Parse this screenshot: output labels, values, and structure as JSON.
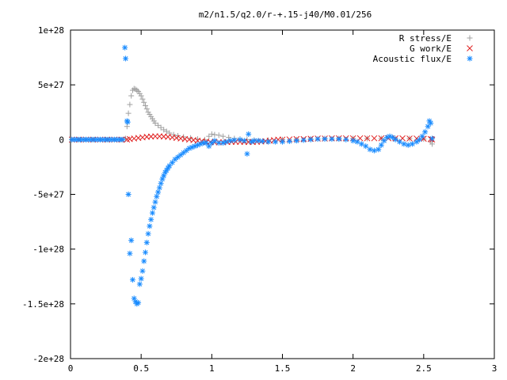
{
  "chart_data": {
    "type": "scatter",
    "title": "m2/n1.5/q2.0/r-+.15-j40/M0.01/256",
    "xlabel": "",
    "ylabel": "",
    "xlim": [
      0,
      3
    ],
    "ylim": [
      -2e+28,
      1e+28
    ],
    "x_ticks": [
      0,
      0.5,
      1,
      1.5,
      2,
      2.5,
      3
    ],
    "x_tick_labels": [
      "0",
      "0.5",
      "1",
      "1.5",
      "2",
      "2.5",
      "3"
    ],
    "y_ticks": [
      1e+28,
      5e+27,
      0,
      -5e+27,
      -1e+28,
      -1.5e+28,
      -2e+28
    ],
    "y_tick_labels": [
      "1e+28",
      "5e+27",
      "0",
      "-5e+27",
      "-1e+28",
      "-1.5e+28",
      "-2e+28"
    ],
    "grid": false,
    "legend_position": "top-right",
    "series": [
      {
        "name": "R stress/E",
        "marker": "plus",
        "color": "#a0a0a0",
        "points": [
          [
            0.01,
            0
          ],
          [
            0.06,
            0
          ],
          [
            0.11,
            0
          ],
          [
            0.16,
            0
          ],
          [
            0.21,
            0
          ],
          [
            0.26,
            0
          ],
          [
            0.31,
            0
          ],
          [
            0.36,
            0
          ],
          [
            0.39,
            1e+26
          ],
          [
            0.4,
            1.2e+27
          ],
          [
            0.41,
            2.4e+27
          ],
          [
            0.42,
            3.2e+27
          ],
          [
            0.43,
            4e+27
          ],
          [
            0.44,
            4.5e+27
          ],
          [
            0.45,
            4.65e+27
          ],
          [
            0.46,
            4.6e+27
          ],
          [
            0.47,
            4.5e+27
          ],
          [
            0.48,
            4.4e+27
          ],
          [
            0.49,
            4.2e+27
          ],
          [
            0.5,
            4e+27
          ],
          [
            0.51,
            3.7e+27
          ],
          [
            0.52,
            3.4e+27
          ],
          [
            0.53,
            3.1e+27
          ],
          [
            0.54,
            2.8e+27
          ],
          [
            0.55,
            2.5e+27
          ],
          [
            0.56,
            2.3e+27
          ],
          [
            0.57,
            2.1e+27
          ],
          [
            0.58,
            1.9e+27
          ],
          [
            0.59,
            1.7e+27
          ],
          [
            0.6,
            1.5e+27
          ],
          [
            0.62,
            1.3e+27
          ],
          [
            0.64,
            1.1e+27
          ],
          [
            0.66,
            9e+26
          ],
          [
            0.68,
            7.5e+26
          ],
          [
            0.7,
            6e+26
          ],
          [
            0.73,
            4.5e+26
          ],
          [
            0.76,
            3.5e+26
          ],
          [
            0.8,
            2.5e+26
          ],
          [
            0.85,
            1.5e+26
          ],
          [
            0.9,
            5e+25
          ],
          [
            0.95,
            0
          ],
          [
            0.98,
            3e+26
          ],
          [
            1.0,
            5e+26
          ],
          [
            1.02,
            4.5e+26
          ],
          [
            1.05,
            4e+26
          ],
          [
            1.08,
            3e+26
          ],
          [
            1.12,
            2e+26
          ],
          [
            1.16,
            1e+26
          ],
          [
            1.2,
            5e+25
          ],
          [
            1.25,
            0.0
          ],
          [
            1.3,
            -5e+25
          ],
          [
            1.4,
            -5e+25
          ],
          [
            1.5,
            0
          ],
          [
            1.6,
            0
          ],
          [
            1.7,
            5e+25
          ],
          [
            1.8,
            1e+26
          ],
          [
            1.9,
            1e+26
          ],
          [
            2.0,
            1e+26
          ],
          [
            2.1,
            1e+26
          ],
          [
            2.2,
            1e+26
          ],
          [
            2.3,
            1e+26
          ],
          [
            2.4,
            1e+26
          ],
          [
            2.5,
            5e+25
          ],
          [
            2.55,
            -2e+26
          ],
          [
            2.56,
            -4e+26
          ]
        ]
      },
      {
        "name": "G work/E",
        "marker": "cross",
        "color": "#e02020",
        "points": [
          [
            0.01,
            0
          ],
          [
            0.06,
            0
          ],
          [
            0.11,
            0
          ],
          [
            0.16,
            0
          ],
          [
            0.21,
            0
          ],
          [
            0.26,
            0
          ],
          [
            0.31,
            0
          ],
          [
            0.36,
            0
          ],
          [
            0.4,
            0
          ],
          [
            0.42,
            5e+25
          ],
          [
            0.45,
            1e+26
          ],
          [
            0.48,
            1.5e+26
          ],
          [
            0.51,
            2e+26
          ],
          [
            0.54,
            2.5e+26
          ],
          [
            0.57,
            2.8e+26
          ],
          [
            0.6,
            3e+26
          ],
          [
            0.63,
            3e+26
          ],
          [
            0.66,
            2.8e+26
          ],
          [
            0.69,
            2.5e+26
          ],
          [
            0.72,
            2e+26
          ],
          [
            0.75,
            1.5e+26
          ],
          [
            0.78,
            1e+26
          ],
          [
            0.81,
            5e+25
          ],
          [
            0.84,
            0
          ],
          [
            0.87,
            -5e+25
          ],
          [
            0.9,
            -1e+26
          ],
          [
            0.93,
            -1.5e+26
          ],
          [
            0.96,
            -2e+26
          ],
          [
            0.99,
            -2.2e+26
          ],
          [
            1.02,
            -2.5e+26
          ],
          [
            1.05,
            -2.5e+26
          ],
          [
            1.08,
            -2.5e+26
          ],
          [
            1.11,
            -2.2e+26
          ],
          [
            1.14,
            -2e+26
          ],
          [
            1.17,
            -2e+26
          ],
          [
            1.2,
            -2e+26
          ],
          [
            1.23,
            -2e+26
          ],
          [
            1.26,
            -2.2e+26
          ],
          [
            1.29,
            -2.2e+26
          ],
          [
            1.32,
            -2e+26
          ],
          [
            1.35,
            -1.8e+26
          ],
          [
            1.38,
            -1.5e+26
          ],
          [
            1.41,
            -1e+26
          ],
          [
            1.44,
            -5e+25
          ],
          [
            1.47,
            0
          ],
          [
            1.5,
            0
          ],
          [
            1.55,
            2e+25
          ],
          [
            1.6,
            5e+25
          ],
          [
            1.65,
            5e+25
          ],
          [
            1.7,
            8e+25
          ],
          [
            1.75,
            1e+26
          ],
          [
            1.8,
            1e+26
          ],
          [
            1.85,
            1.2e+26
          ],
          [
            1.9,
            1.2e+26
          ],
          [
            1.95,
            1.2e+26
          ],
          [
            2.0,
            1.2e+26
          ],
          [
            2.05,
            1.2e+26
          ],
          [
            2.1,
            1.2e+26
          ],
          [
            2.15,
            1.2e+26
          ],
          [
            2.2,
            1.2e+26
          ],
          [
            2.25,
            1.2e+26
          ],
          [
            2.3,
            1.2e+26
          ],
          [
            2.35,
            1.2e+26
          ],
          [
            2.4,
            1e+26
          ],
          [
            2.45,
            1e+26
          ],
          [
            2.5,
            8e+25
          ],
          [
            2.55,
            5e+25
          ],
          [
            2.56,
            0
          ]
        ]
      },
      {
        "name": "Acoustic flux/E",
        "marker": "star",
        "color": "#1a8cff",
        "points": [
          [
            0.01,
            0
          ],
          [
            0.03,
            0
          ],
          [
            0.05,
            0
          ],
          [
            0.07,
            0
          ],
          [
            0.09,
            0
          ],
          [
            0.11,
            0
          ],
          [
            0.13,
            0
          ],
          [
            0.15,
            0
          ],
          [
            0.17,
            0
          ],
          [
            0.19,
            0
          ],
          [
            0.21,
            0
          ],
          [
            0.23,
            0
          ],
          [
            0.25,
            0
          ],
          [
            0.27,
            0
          ],
          [
            0.29,
            0
          ],
          [
            0.31,
            0
          ],
          [
            0.33,
            0
          ],
          [
            0.35,
            0
          ],
          [
            0.37,
            0
          ],
          [
            0.385,
            8.4e+27
          ],
          [
            0.39,
            7.4e+27
          ],
          [
            0.4,
            1.7e+27
          ],
          [
            0.405,
            1.6e+27
          ],
          [
            0.41,
            -5e+27
          ],
          [
            0.42,
            -1.04e+28
          ],
          [
            0.43,
            -9.2e+27
          ],
          [
            0.44,
            -1.28e+28
          ],
          [
            0.45,
            -1.45e+28
          ],
          [
            0.46,
            -1.48e+28
          ],
          [
            0.47,
            -1.5e+28
          ],
          [
            0.48,
            -1.49e+28
          ],
          [
            0.49,
            -1.32e+28
          ],
          [
            0.5,
            -1.27e+28
          ],
          [
            0.51,
            -1.2e+28
          ],
          [
            0.52,
            -1.11e+28
          ],
          [
            0.53,
            -1.03e+28
          ],
          [
            0.54,
            -9.4e+27
          ],
          [
            0.55,
            -8.6e+27
          ],
          [
            0.56,
            -7.9e+27
          ],
          [
            0.57,
            -7.3e+27
          ],
          [
            0.58,
            -6.7e+27
          ],
          [
            0.59,
            -6.2e+27
          ],
          [
            0.6,
            -5.7e+27
          ],
          [
            0.61,
            -5.2e+27
          ],
          [
            0.62,
            -4.8e+27
          ],
          [
            0.63,
            -4.4e+27
          ],
          [
            0.64,
            -4e+27
          ],
          [
            0.65,
            -3.6e+27
          ],
          [
            0.66,
            -3.3e+27
          ],
          [
            0.67,
            -3e+27
          ],
          [
            0.68,
            -2.8e+27
          ],
          [
            0.69,
            -2.6e+27
          ],
          [
            0.7,
            -2.4e+27
          ],
          [
            0.72,
            -2.1e+27
          ],
          [
            0.74,
            -1.8e+27
          ],
          [
            0.76,
            -1.6e+27
          ],
          [
            0.78,
            -1.4e+27
          ],
          [
            0.8,
            -1.2e+27
          ],
          [
            0.82,
            -1e+27
          ],
          [
            0.84,
            -8e+26
          ],
          [
            0.86,
            -7e+26
          ],
          [
            0.88,
            -6e+26
          ],
          [
            0.9,
            -5e+26
          ],
          [
            0.92,
            -4e+26
          ],
          [
            0.94,
            -3e+26
          ],
          [
            0.96,
            -3e+26
          ],
          [
            0.98,
            -6e+26
          ],
          [
            1.0,
            -3e+26
          ],
          [
            1.02,
            -1e+26
          ],
          [
            1.05,
            -3e+26
          ],
          [
            1.08,
            -3e+26
          ],
          [
            1.1,
            -2e+26
          ],
          [
            1.13,
            -1e+26
          ],
          [
            1.16,
            -5e+25
          ],
          [
            1.2,
            0
          ],
          [
            1.23,
            -1e+26
          ],
          [
            1.25,
            -1.3e+27
          ],
          [
            1.26,
            5e+26
          ],
          [
            1.28,
            -2e+26
          ],
          [
            1.3,
            -1e+26
          ],
          [
            1.33,
            -1e+26
          ],
          [
            1.36,
            -1.5e+26
          ],
          [
            1.4,
            -2e+26
          ],
          [
            1.45,
            -2e+26
          ],
          [
            1.5,
            -2e+26
          ],
          [
            1.55,
            -1.5e+26
          ],
          [
            1.6,
            -1e+26
          ],
          [
            1.65,
            -5e+25
          ],
          [
            1.7,
            0
          ],
          [
            1.75,
            5e+25
          ],
          [
            1.8,
            5e+25
          ],
          [
            1.85,
            5e+25
          ],
          [
            1.9,
            5e+25
          ],
          [
            1.95,
            0
          ],
          [
            2.0,
            -1e+26
          ],
          [
            2.03,
            -2e+26
          ],
          [
            2.06,
            -4e+26
          ],
          [
            2.09,
            -6e+26
          ],
          [
            2.12,
            -9e+26
          ],
          [
            2.15,
            -1e+27
          ],
          [
            2.18,
            -9e+26
          ],
          [
            2.2,
            -5e+26
          ],
          [
            2.22,
            -1e+26
          ],
          [
            2.24,
            2e+26
          ],
          [
            2.26,
            3e+26
          ],
          [
            2.28,
            2e+26
          ],
          [
            2.3,
            0
          ],
          [
            2.33,
            -2e+26
          ],
          [
            2.36,
            -4e+26
          ],
          [
            2.39,
            -5e+26
          ],
          [
            2.42,
            -4e+26
          ],
          [
            2.45,
            -2e+26
          ],
          [
            2.47,
            0
          ],
          [
            2.49,
            3e+26
          ],
          [
            2.51,
            7e+26
          ],
          [
            2.53,
            1.2e+27
          ],
          [
            2.54,
            1.7e+27
          ],
          [
            2.55,
            1.5e+27
          ],
          [
            2.56,
            1e+26
          ]
        ]
      }
    ]
  }
}
